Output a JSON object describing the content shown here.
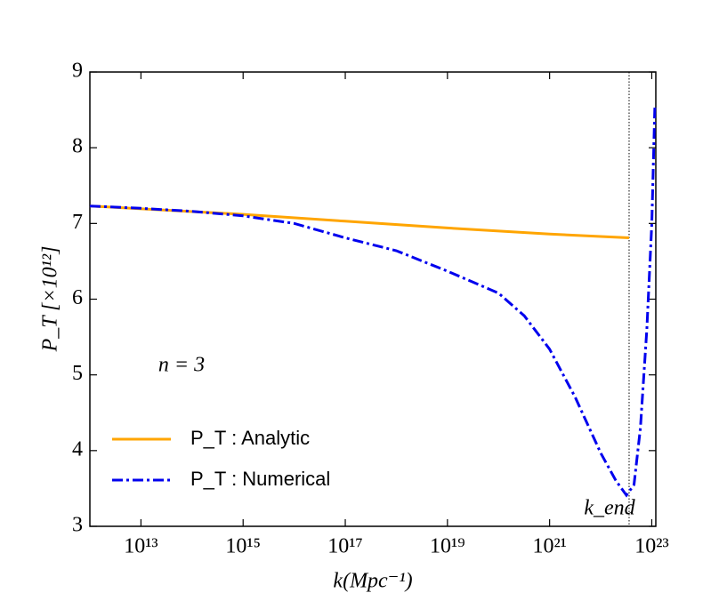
{
  "chart_data": {
    "type": "line",
    "xlabel": "k(Mpc⁻¹)",
    "ylabel": "P_T [×10¹²]",
    "xscale": "log",
    "xlim": [
      1000000000000.0,
      1.2e+23
    ],
    "ylim": [
      3,
      9
    ],
    "xticks": [
      {
        "value": 10000000000000.0,
        "label": "10¹³"
      },
      {
        "value": 1000000000000000.0,
        "label": "10¹⁵"
      },
      {
        "value": 1e+17,
        "label": "10¹⁷"
      },
      {
        "value": 1e+19,
        "label": "10¹⁹"
      },
      {
        "value": 1e+21,
        "label": "10²¹"
      },
      {
        "value": 1e+23,
        "label": "10²³"
      }
    ],
    "yticks": [
      3,
      4,
      5,
      6,
      7,
      8,
      9
    ],
    "legend": "lower left",
    "annotations": [
      {
        "text": "n = 3"
      }
    ],
    "kend": {
      "label": "k_end",
      "x": 3.6e+22
    },
    "series": [
      {
        "name": "P_T : Analytic",
        "color": "#ffa500",
        "dash": "solid",
        "x": [
          1000000000000.0,
          1000000000000000.0,
          1e+17,
          1e+19,
          1e+21,
          3.6e+22
        ],
        "values": [
          7.23,
          7.12,
          7.03,
          6.94,
          6.86,
          6.81
        ]
      },
      {
        "name": "P_T : Numerical",
        "color": "#0000ee",
        "dash": "dashdot",
        "x": [
          1000000000000.0,
          10000000000000.0,
          100000000000000.0,
          1000000000000000.0,
          1e+16,
          1e+17,
          1e+18,
          1e+19,
          1e+20,
          3.2e+20,
          1e+21,
          3.2e+21,
          1e+22,
          2e+22,
          3.2e+22,
          4.5e+22,
          6e+22,
          8e+22,
          1e+23,
          1.15e+23
        ],
        "values": [
          7.23,
          7.2,
          7.16,
          7.1,
          7.0,
          6.81,
          6.64,
          6.37,
          6.08,
          5.78,
          5.34,
          4.7,
          3.97,
          3.6,
          3.41,
          3.55,
          4.3,
          5.6,
          7.0,
          8.54
        ]
      }
    ]
  }
}
